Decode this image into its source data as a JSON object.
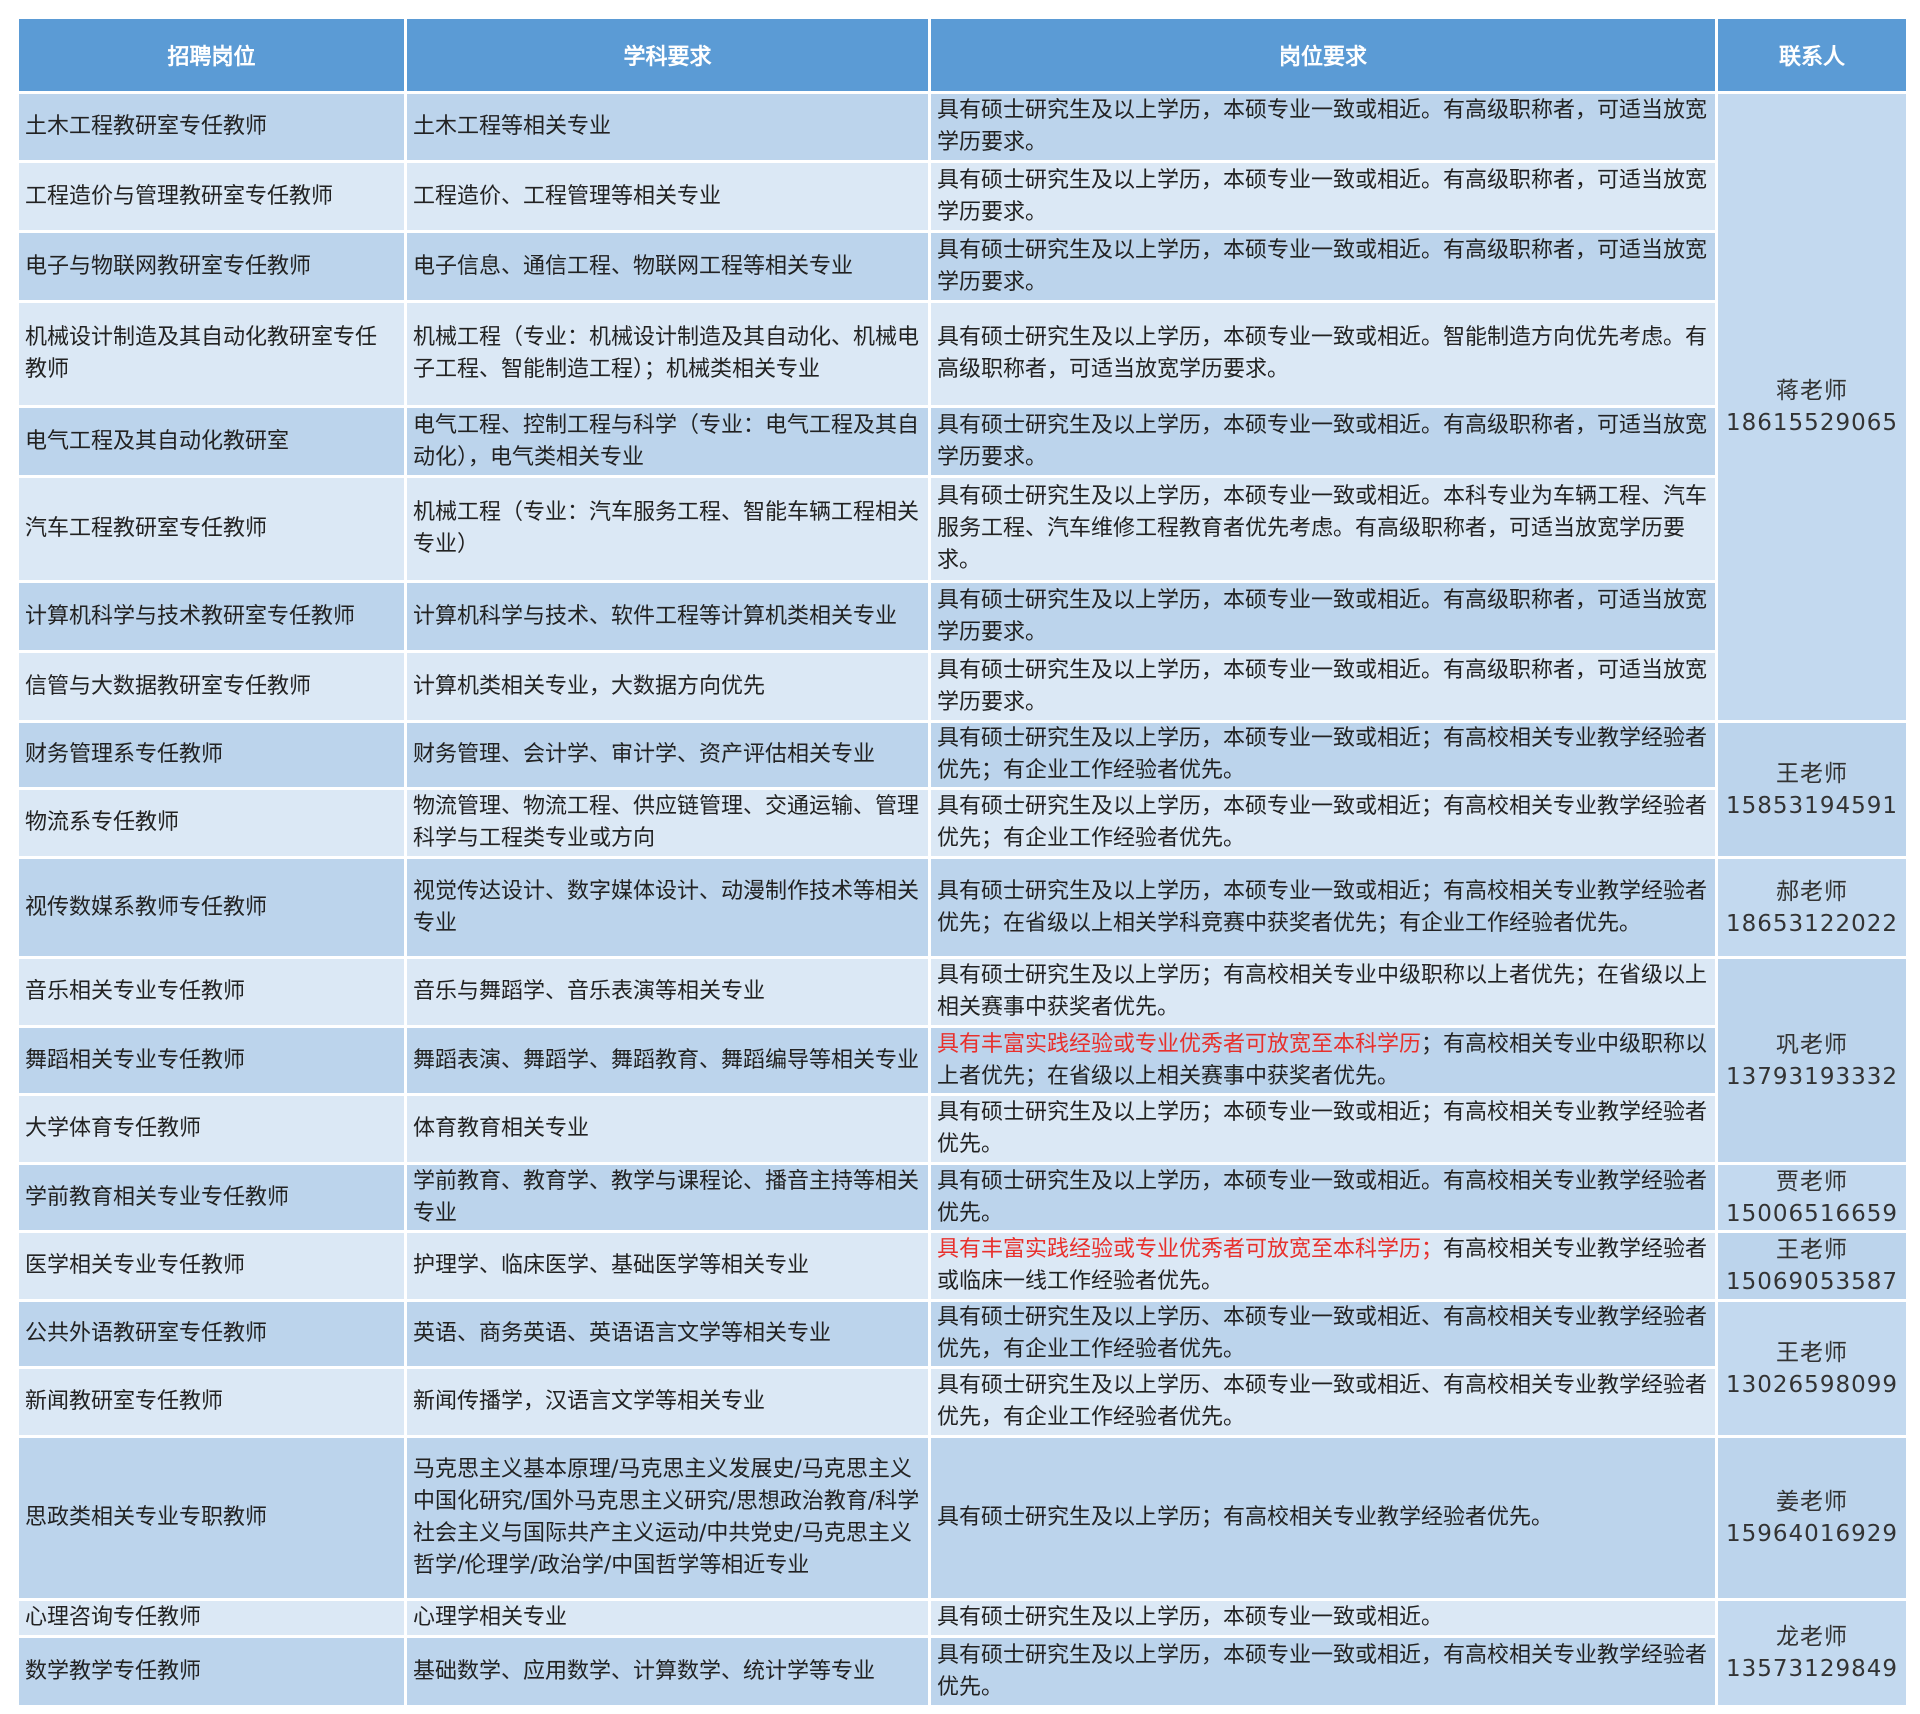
{
  "headers": [
    "招聘岗位",
    "学科要求",
    "岗位要求",
    "联系人"
  ],
  "colors": {
    "header": "#5b9bd5",
    "row_dark": "#bcd4ec",
    "row_light": "#dbe8f5",
    "highlight": "#e8302c"
  },
  "rows": [
    {
      "position": "土木工程教研室专任教师",
      "subject": "土木工程等相关专业",
      "req_highlight": "",
      "requirement": "具有硕士研究生及以上学历，本硕专业一致或相近。有高级职称者，可适当放宽学历要求。"
    },
    {
      "position": "工程造价与管理教研室专任教师",
      "subject": "工程造价、工程管理等相关专业",
      "req_highlight": "",
      "requirement": "具有硕士研究生及以上学历，本硕专业一致或相近。有高级职称者，可适当放宽学历要求。"
    },
    {
      "position": "电子与物联网教研室专任教师",
      "subject": "电子信息、通信工程、物联网工程等相关专业",
      "req_highlight": "",
      "requirement": "具有硕士研究生及以上学历，本硕专业一致或相近。有高级职称者，可适当放宽学历要求。"
    },
    {
      "position": "机械设计制造及其自动化教研室专任教师",
      "subject": "机械工程（专业：机械设计制造及其自动化、机械电子工程、智能制造工程）；机械类相关专业",
      "req_highlight": "",
      "requirement": "具有硕士研究生及以上学历，本硕专业一致或相近。智能制造方向优先考虑。有高级职称者，可适当放宽学历要求。"
    },
    {
      "position": "电气工程及其自动化教研室",
      "subject": "电气工程、控制工程与科学（专业：电气工程及其自动化），电气类相关专业",
      "req_highlight": "",
      "requirement": "具有硕士研究生及以上学历，本硕专业一致或相近。有高级职称者，可适当放宽学历要求。"
    },
    {
      "position": "汽车工程教研室专任教师",
      "subject": "机械工程（专业：汽车服务工程、智能车辆工程相关专业）",
      "req_highlight": "",
      "requirement": "具有硕士研究生及以上学历，本硕专业一致或相近。本科专业为车辆工程、汽车服务工程、汽车维修工程教育者优先考虑。有高级职称者，可适当放宽学历要求。"
    },
    {
      "position": "计算机科学与技术教研室专任教师",
      "subject": "计算机科学与技术、软件工程等计算机类相关专业",
      "req_highlight": "",
      "requirement": "具有硕士研究生及以上学历，本硕专业一致或相近。有高级职称者，可适当放宽学历要求。"
    },
    {
      "position": "信管与大数据教研室专任教师",
      "subject": "计算机类相关专业，大数据方向优先",
      "req_highlight": "",
      "requirement": "具有硕士研究生及以上学历，本硕专业一致或相近。有高级职称者，可适当放宽学历要求。"
    },
    {
      "position": "财务管理系专任教师",
      "subject": "财务管理、会计学、审计学、资产评估相关专业",
      "req_highlight": "",
      "requirement": "具有硕士研究生及以上学历，本硕专业一致或相近；有高校相关专业教学经验者优先；有企业工作经验者优先。"
    },
    {
      "position": "物流系专任教师",
      "subject": "物流管理、物流工程、供应链管理、交通运输、管理科学与工程类专业或方向",
      "req_highlight": "",
      "requirement": "具有硕士研究生及以上学历，本硕专业一致或相近；有高校相关专业教学经验者优先；有企业工作经验者优先。"
    },
    {
      "position": "视传数媒系教师专任教师",
      "subject": "视觉传达设计、数字媒体设计、动漫制作技术等相关专业",
      "req_highlight": "",
      "requirement": "具有硕士研究生及以上学历，本硕专业一致或相近；有高校相关专业教学经验者优先；在省级以上相关学科竞赛中获奖者优先；有企业工作经验者优先。"
    },
    {
      "position": "音乐相关专业专任教师",
      "subject": "音乐与舞蹈学、音乐表演等相关专业",
      "req_highlight": "",
      "requirement": "具有硕士研究生及以上学历；有高校相关专业中级职称以上者优先；在省级以上相关赛事中获奖者优先。"
    },
    {
      "position": "舞蹈相关专业专任教师",
      "subject": "舞蹈表演、舞蹈学、舞蹈教育、舞蹈编导等相关专业",
      "req_highlight": "具有丰富实践经验或专业优秀者可放宽至本科学历",
      "requirement": "；有高校相关专业中级职称以上者优先；在省级以上相关赛事中获奖者优先。"
    },
    {
      "position": "大学体育专任教师",
      "subject": "体育教育相关专业",
      "req_highlight": "",
      "requirement": "具有硕士研究生及以上学历；本硕专业一致或相近；有高校相关专业教学经验者优先。"
    },
    {
      "position": "学前教育相关专业专任教师",
      "subject": "学前教育、教育学、教学与课程论、播音主持等相关专业",
      "req_highlight": "",
      "requirement": "具有硕士研究生及以上学历，本硕专业一致或相近。有高校相关专业教学经验者优先。"
    },
    {
      "position": "医学相关专业专任教师",
      "subject": "护理学、临床医学、基础医学等相关专业",
      "req_highlight": "具有丰富实践经验或专业优秀者可放宽至本科学历；",
      "requirement": "有高校相关专业教学经验者或临床一线工作经验者优先。"
    },
    {
      "position": "公共外语教研室专任教师",
      "subject": "英语、商务英语、英语语言文学等相关专业",
      "req_highlight": "",
      "requirement": "具有硕士研究生及以上学历、本硕专业一致或相近、有高校相关专业教学经验者优先，有企业工作经验者优先。"
    },
    {
      "position": "新闻教研室专任教师",
      "subject": "新闻传播学，汉语言文学等相关专业",
      "req_highlight": "",
      "requirement": "具有硕士研究生及以上学历、本硕专业一致或相近、有高校相关专业教学经验者优先，有企业工作经验者优先。"
    },
    {
      "position": "思政类相关专业专职教师",
      "subject": "马克思主义基本原理/马克思主义发展史/马克思主义中国化研究/国外马克思主义研究/思想政治教育/科学社会主义与国际共产主义运动/中共党史/马克思主义哲学/伦理学/政治学/中国哲学等相近专业",
      "req_highlight": "",
      "requirement": "具有硕士研究生及以上学历；有高校相关专业教学经验者优先。"
    },
    {
      "position": "心理咨询专任教师",
      "subject": "心理学相关专业",
      "req_highlight": "",
      "requirement": "具有硕士研究生及以上学历，本硕专业一致或相近。"
    },
    {
      "position": "数学教学专任教师",
      "subject": "基础数学、应用数学、计算数学、统计学等专业",
      "req_highlight": "",
      "requirement": "具有硕士研究生及以上学历，本硕专业一致或相近，有高校相关专业教学经验者优先。"
    }
  ],
  "contacts": [
    {
      "name": "蒋老师",
      "phone": "18615529065",
      "rows": 8
    },
    {
      "name": "王老师",
      "phone": "15853194591",
      "rows": 2
    },
    {
      "name": "郝老师",
      "phone": "18653122022",
      "rows": 1
    },
    {
      "name": "巩老师",
      "phone": "13793193332",
      "rows": 3
    },
    {
      "name": "贾老师",
      "phone": "15006516659",
      "rows": 1
    },
    {
      "name": "王老师",
      "phone": "15069053587",
      "rows": 1
    },
    {
      "name": "王老师",
      "phone": "13026598099",
      "rows": 2
    },
    {
      "name": "姜老师",
      "phone": "15964016929",
      "rows": 1
    },
    {
      "name": "龙老师",
      "phone": "13573129849",
      "rows": 2
    }
  ]
}
